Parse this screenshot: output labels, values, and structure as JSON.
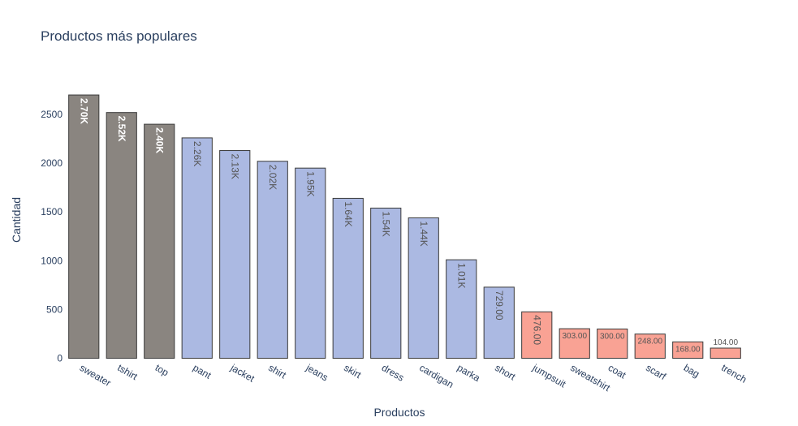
{
  "chart_data": {
    "type": "bar",
    "title": "Productos más populares",
    "xlabel": "Productos",
    "ylabel": "Cantidad",
    "ylim": [
      0,
      2800
    ],
    "yticks": [
      0,
      500,
      1000,
      1500,
      2000,
      2500
    ],
    "grid": false,
    "categories": [
      "sweater",
      "tshirt",
      "top",
      "pant",
      "jacket",
      "shirt",
      "jeans",
      "skirt",
      "dress",
      "cardigan",
      "parka",
      "short",
      "jumpsuit",
      "sweatshirt",
      "coat",
      "scarf",
      "bag",
      "trench"
    ],
    "values": [
      2700,
      2520,
      2400,
      2260,
      2130,
      2020,
      1950,
      1640,
      1540,
      1440,
      1010,
      729,
      476,
      303,
      300,
      248,
      168,
      104
    ],
    "data_labels": [
      "2.70K",
      "2.52K",
      "2.40K",
      "2.26K",
      "2.13K",
      "2.02K",
      "1.95K",
      "1.64K",
      "1.54K",
      "1.44K",
      "1.01K",
      "729.00",
      "476.00",
      "303.00",
      "300.00",
      "248.00",
      "168.00",
      "104.00"
    ],
    "bar_colors": [
      "#8a8580",
      "#8a8580",
      "#8a8580",
      "#abb9e2",
      "#abb9e2",
      "#abb9e2",
      "#abb9e2",
      "#abb9e2",
      "#abb9e2",
      "#abb9e2",
      "#abb9e2",
      "#abb9e2",
      "#f9a294",
      "#f9a294",
      "#f9a294",
      "#f9a294",
      "#f9a294",
      "#f9a294"
    ],
    "label_colors": [
      "#ffffff",
      "#ffffff",
      "#ffffff",
      "#555555",
      "#555555",
      "#555555",
      "#555555",
      "#555555",
      "#555555",
      "#555555",
      "#555555",
      "#555555",
      "#555555",
      "#555555",
      "#555555",
      "#555555",
      "#555555",
      "#555555"
    ],
    "bar_outline_color": "#3a3a3a"
  }
}
